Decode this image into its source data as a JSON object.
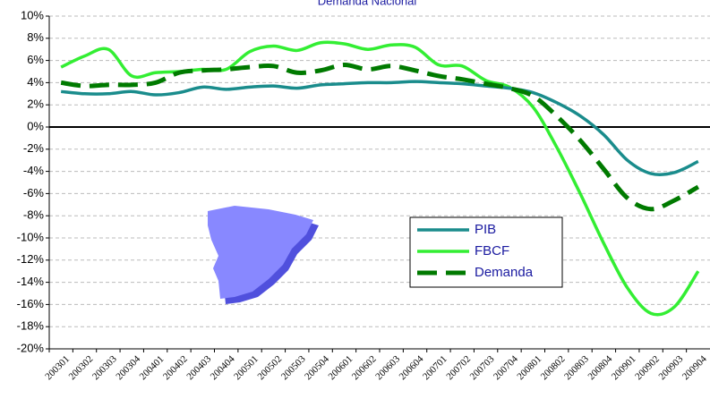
{
  "chart_data": {
    "type": "line",
    "title": "Demanda Nacional",
    "categories": [
      "200301",
      "200302",
      "200303",
      "200304",
      "200401",
      "200402",
      "200403",
      "200404",
      "200501",
      "200502",
      "200503",
      "200504",
      "200601",
      "200602",
      "200603",
      "200604",
      "200701",
      "200702",
      "200703",
      "200704",
      "200801",
      "200802",
      "200803",
      "200804",
      "200901",
      "200902",
      "200903",
      "200904"
    ],
    "series": [
      {
        "name": "PIB",
        "color": "#1a8c8c",
        "style": "solid",
        "values": [
          3.2,
          3.0,
          3.0,
          3.2,
          2.9,
          3.1,
          3.6,
          3.4,
          3.6,
          3.7,
          3.5,
          3.8,
          3.9,
          4.0,
          4.0,
          4.1,
          4.0,
          3.9,
          3.7,
          3.5,
          3.1,
          2.2,
          1.0,
          -0.7,
          -3.0,
          -4.2,
          -4.1,
          -3.1
        ]
      },
      {
        "name": "FBCF",
        "color": "#33ee33",
        "style": "solid",
        "values": [
          5.4,
          6.4,
          7.0,
          4.6,
          4.9,
          5.0,
          5.2,
          5.2,
          6.8,
          7.3,
          6.9,
          7.6,
          7.5,
          7.0,
          7.4,
          7.2,
          5.6,
          5.5,
          4.2,
          3.6,
          1.8,
          -1.8,
          -6.0,
          -10.5,
          -14.5,
          -16.8,
          -16.2,
          -13.0
        ]
      },
      {
        "name": "Demanda",
        "color": "#007a00",
        "style": "dashed",
        "values": [
          4.0,
          3.7,
          3.8,
          3.8,
          4.0,
          4.9,
          5.1,
          5.2,
          5.4,
          5.5,
          4.9,
          5.1,
          5.6,
          5.2,
          5.5,
          5.1,
          4.6,
          4.3,
          3.9,
          3.5,
          2.8,
          1.0,
          -1.2,
          -3.8,
          -6.4,
          -7.4,
          -6.6,
          -5.4
        ]
      }
    ],
    "ylim": [
      -20,
      10
    ],
    "yticks": [
      {
        "value": -20,
        "label": "-20%"
      },
      {
        "value": -18,
        "label": "-18%"
      },
      {
        "value": -16,
        "label": "-16%"
      },
      {
        "value": -14,
        "label": "-14%"
      },
      {
        "value": -12,
        "label": "-12%"
      },
      {
        "value": -10,
        "label": "-10%"
      },
      {
        "value": -8,
        "label": "-8%"
      },
      {
        "value": -6,
        "label": "-6%"
      },
      {
        "value": -4,
        "label": "-4%"
      },
      {
        "value": -2,
        "label": "-2%"
      },
      {
        "value": 0,
        "label": "0%"
      },
      {
        "value": 2,
        "label": "2%"
      },
      {
        "value": 4,
        "label": "4%"
      },
      {
        "value": 6,
        "label": "6%"
      },
      {
        "value": 8,
        "label": "8%"
      },
      {
        "value": 10,
        "label": "10%"
      }
    ],
    "grid": true
  }
}
